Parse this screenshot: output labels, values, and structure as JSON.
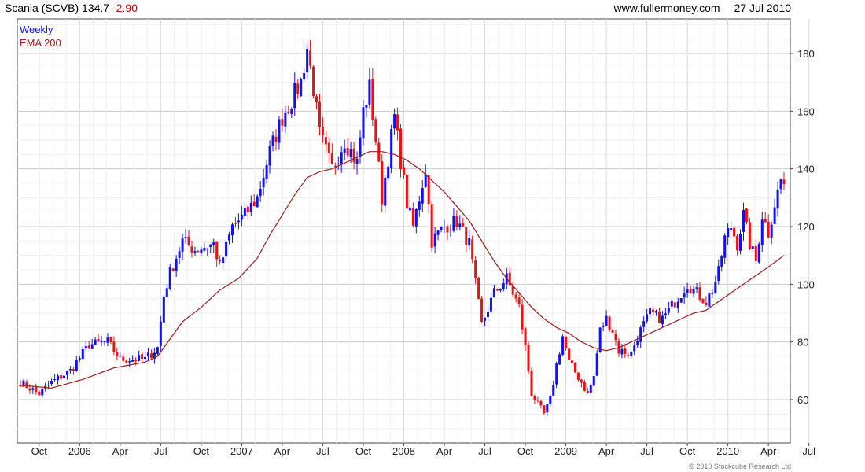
{
  "header": {
    "title": "Scania (SCVB)",
    "price": "134.7",
    "change": "-2.90",
    "site": "www.fullermoney.com",
    "date": "27 Jul 2010"
  },
  "legend": {
    "price_label": "Weekly",
    "ema_label": "EMA 200"
  },
  "footer": {
    "copyright": "© 2010 Stockcube Research Ltd"
  },
  "colors": {
    "up": "#1111ee",
    "down": "#ee1111",
    "ema": "#9b1c1c",
    "grid": "#dcdcdc",
    "axis": "#444444"
  },
  "chart_data": {
    "type": "candlestick",
    "ylim": [
      45,
      192
    ],
    "yticks": [
      60,
      80,
      100,
      120,
      140,
      160,
      180
    ],
    "grid": true,
    "legend_position": "top-left",
    "xticks": [
      "Oct",
      "2006",
      "Apr",
      "Jul",
      "Oct",
      "2007",
      "Apr",
      "Jul",
      "Oct",
      "2008",
      "Apr",
      "Jul",
      "Oct",
      "2009",
      "Apr",
      "Jul",
      "Oct",
      "2010",
      "Apr",
      "Jul"
    ],
    "price_keypoints": [
      [
        0,
        66
      ],
      [
        6,
        62
      ],
      [
        10,
        66
      ],
      [
        16,
        70
      ],
      [
        22,
        79
      ],
      [
        28,
        80
      ],
      [
        32,
        74
      ],
      [
        40,
        74
      ],
      [
        44,
        78
      ],
      [
        46,
        96
      ],
      [
        48,
        104
      ],
      [
        52,
        115
      ],
      [
        56,
        112
      ],
      [
        62,
        114
      ],
      [
        64,
        106
      ],
      [
        68,
        120
      ],
      [
        72,
        124
      ],
      [
        76,
        130
      ],
      [
        80,
        146
      ],
      [
        84,
        158
      ],
      [
        88,
        166
      ],
      [
        90,
        170
      ],
      [
        92,
        182
      ],
      [
        94,
        168
      ],
      [
        96,
        152
      ],
      [
        100,
        140
      ],
      [
        104,
        150
      ],
      [
        108,
        142
      ],
      [
        110,
        160
      ],
      [
        112,
        168
      ],
      [
        114,
        150
      ],
      [
        116,
        130
      ],
      [
        120,
        158
      ],
      [
        124,
        128
      ],
      [
        126,
        120
      ],
      [
        128,
        130
      ],
      [
        130,
        140
      ],
      [
        132,
        115
      ],
      [
        136,
        120
      ],
      [
        140,
        122
      ],
      [
        144,
        114
      ],
      [
        146,
        100
      ],
      [
        148,
        86
      ],
      [
        152,
        97
      ],
      [
        156,
        102
      ],
      [
        160,
        92
      ],
      [
        162,
        78
      ],
      [
        164,
        62
      ],
      [
        168,
        55
      ],
      [
        170,
        60
      ],
      [
        172,
        72
      ],
      [
        174,
        82
      ],
      [
        176,
        73
      ],
      [
        180,
        66
      ],
      [
        182,
        62
      ],
      [
        184,
        68
      ],
      [
        186,
        84
      ],
      [
        188,
        88
      ],
      [
        190,
        84
      ],
      [
        192,
        77
      ],
      [
        196,
        76
      ],
      [
        198,
        82
      ],
      [
        202,
        90
      ],
      [
        206,
        88
      ],
      [
        210,
        94
      ],
      [
        214,
        100
      ],
      [
        218,
        96
      ],
      [
        220,
        94
      ],
      [
        222,
        98
      ],
      [
        224,
        104
      ],
      [
        226,
        116
      ],
      [
        228,
        120
      ],
      [
        230,
        114
      ],
      [
        232,
        124
      ],
      [
        234,
        114
      ],
      [
        236,
        108
      ],
      [
        238,
        124
      ],
      [
        240,
        118
      ],
      [
        242,
        128
      ],
      [
        244,
        136
      ],
      [
        245,
        134.7
      ]
    ],
    "ema_keypoints": [
      [
        0,
        65
      ],
      [
        10,
        64
      ],
      [
        20,
        67
      ],
      [
        30,
        71
      ],
      [
        40,
        73
      ],
      [
        44,
        75
      ],
      [
        48,
        81
      ],
      [
        52,
        87
      ],
      [
        58,
        92
      ],
      [
        64,
        98
      ],
      [
        70,
        102
      ],
      [
        76,
        109
      ],
      [
        80,
        117
      ],
      [
        84,
        124
      ],
      [
        88,
        131
      ],
      [
        92,
        137
      ],
      [
        96,
        139
      ],
      [
        100,
        140
      ],
      [
        104,
        142
      ],
      [
        108,
        144
      ],
      [
        112,
        146
      ],
      [
        116,
        146
      ],
      [
        120,
        145
      ],
      [
        124,
        143
      ],
      [
        128,
        140
      ],
      [
        132,
        136
      ],
      [
        136,
        132
      ],
      [
        140,
        127
      ],
      [
        144,
        122
      ],
      [
        148,
        115
      ],
      [
        152,
        108
      ],
      [
        156,
        102
      ],
      [
        160,
        97
      ],
      [
        164,
        92
      ],
      [
        168,
        88
      ],
      [
        172,
        85
      ],
      [
        176,
        83
      ],
      [
        180,
        80
      ],
      [
        184,
        78
      ],
      [
        188,
        77
      ],
      [
        192,
        78
      ],
      [
        196,
        80
      ],
      [
        200,
        82
      ],
      [
        204,
        84
      ],
      [
        208,
        86
      ],
      [
        212,
        88
      ],
      [
        216,
        90
      ],
      [
        220,
        91
      ],
      [
        224,
        94
      ],
      [
        228,
        97
      ],
      [
        232,
        100
      ],
      [
        236,
        103
      ],
      [
        240,
        106
      ],
      [
        245,
        110
      ]
    ]
  }
}
